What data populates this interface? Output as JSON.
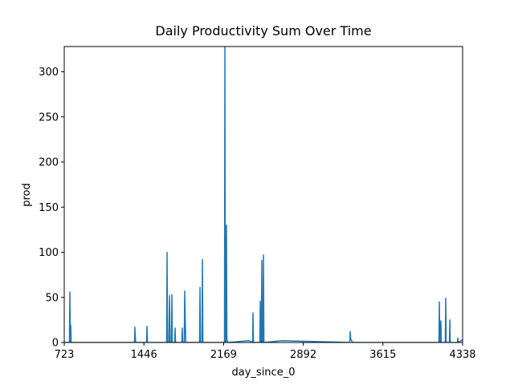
{
  "chart_data": {
    "type": "line",
    "title": "Daily Productivity Sum Over Time",
    "x_label": "day_since_0",
    "y_label": "prod",
    "x": [
      723,
      770,
      774,
      778,
      782,
      786,
      1360,
      1364,
      1368,
      1372,
      1470,
      1474,
      1478,
      1652,
      1656,
      1660,
      1672,
      1678,
      1684,
      1696,
      1700,
      1704,
      1725,
      1729,
      1733,
      1790,
      1794,
      1798,
      1812,
      1816,
      1820,
      1826,
      1951,
      1955,
      1959,
      1973,
      1977,
      1981,
      2177,
      2181,
      2185,
      2191,
      2195,
      2199,
      2210,
      2400,
      2432,
      2436,
      2440,
      2498,
      2502,
      2506,
      2512,
      2516,
      2520,
      2527,
      2531,
      2535,
      2700,
      3314,
      3318,
      3322,
      3340,
      4123,
      4127,
      4131,
      4137,
      4141,
      4145,
      4181,
      4185,
      4189,
      4218,
      4222,
      4226,
      4291,
      4295,
      4299,
      4338
    ],
    "values": [
      0,
      0,
      56,
      0,
      19,
      0,
      0,
      17,
      5,
      0,
      0,
      18,
      0,
      0,
      100,
      0,
      0,
      52,
      0,
      0,
      53,
      0,
      0,
      16,
      0,
      0,
      16,
      0,
      0,
      57,
      30,
      0,
      0,
      61,
      0,
      0,
      92,
      0,
      0,
      328,
      0,
      0,
      130,
      3,
      0,
      2,
      0,
      33,
      0,
      0,
      46,
      0,
      0,
      91,
      0,
      0,
      97,
      0,
      2,
      0,
      12,
      4,
      0,
      0,
      45,
      0,
      0,
      24,
      0,
      0,
      49,
      0,
      0,
      25,
      0,
      0,
      5,
      0,
      3
    ],
    "color": "#1f77b4",
    "xlim": [
      723,
      4338
    ],
    "xticks": [
      723,
      1446,
      2169,
      2892,
      3615,
      4338
    ],
    "ylim": [
      0,
      328
    ],
    "yticks": [
      0,
      50,
      100,
      150,
      200,
      250,
      300
    ]
  }
}
